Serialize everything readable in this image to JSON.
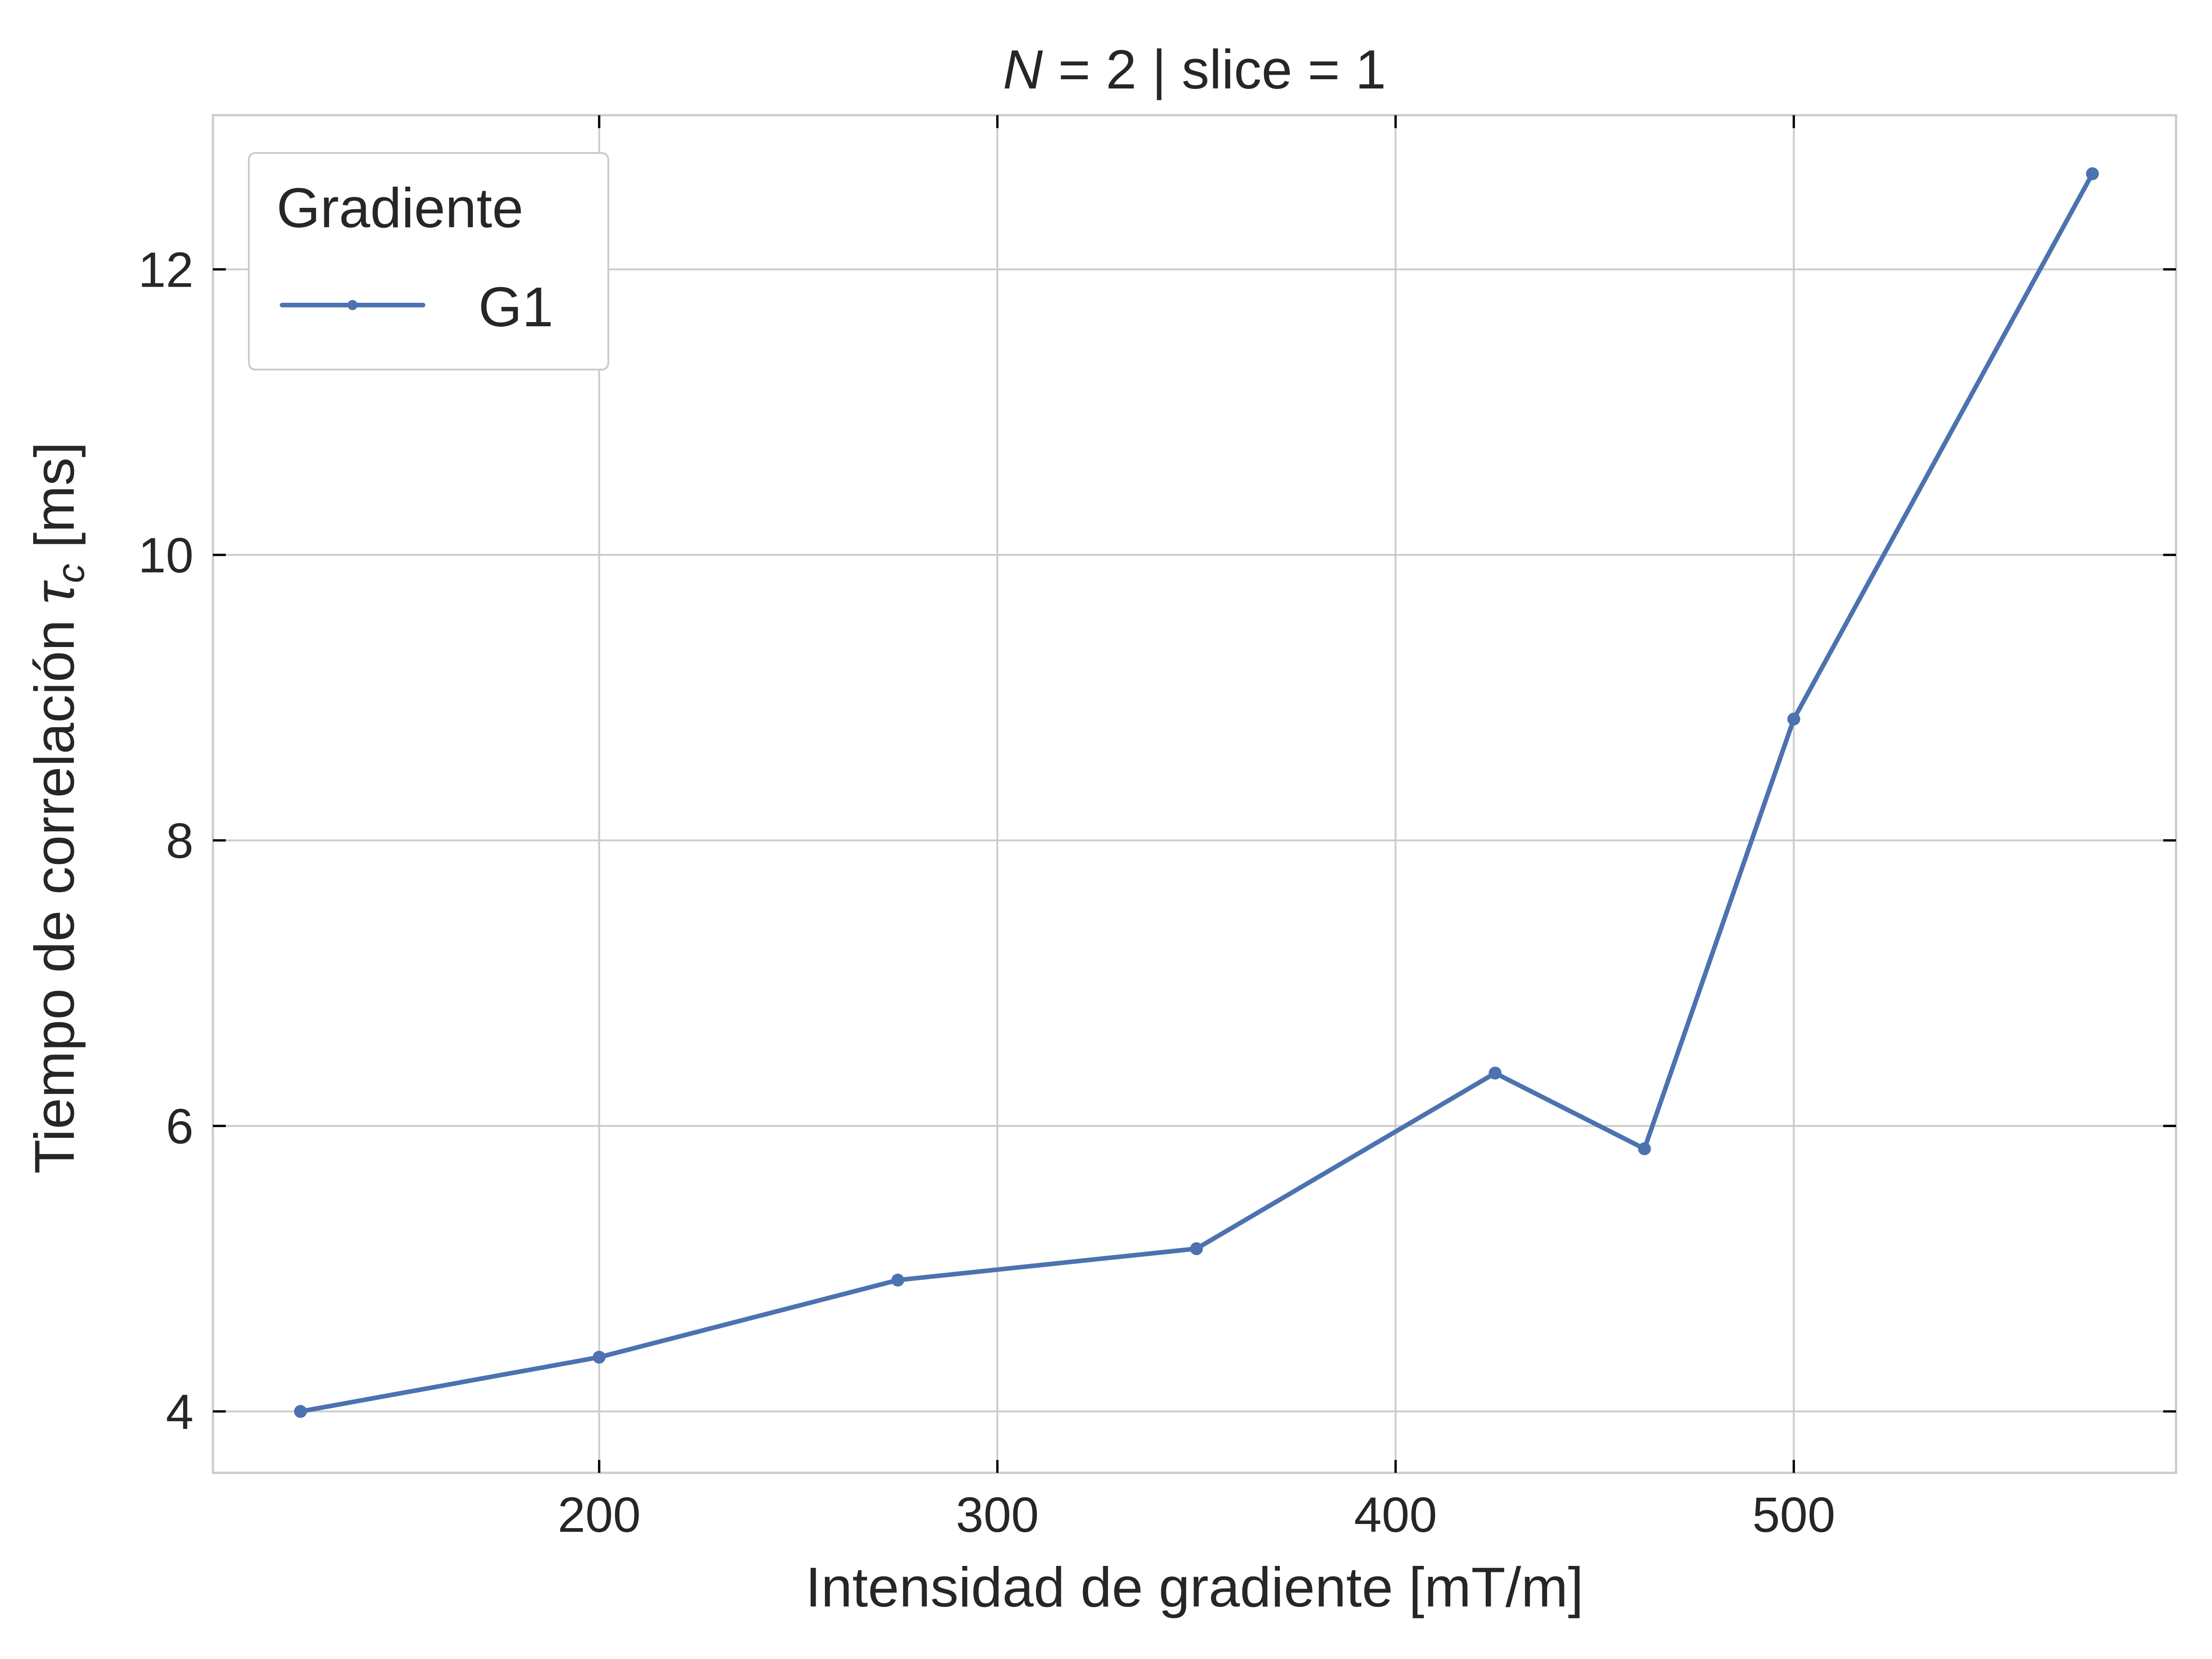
{
  "chart_data": {
    "type": "line",
    "title": "N = 2 | slice = 1",
    "title_parts": {
      "var": "N",
      "rest": " = 2 | slice = 1"
    },
    "xlabel": "Intensidad de gradiente [mT/m]",
    "ylabel": "Tiempo de correlación τc [ms]",
    "ylabel_parts": {
      "text": "Tiempo de correlación ",
      "symbol": "τ",
      "subscript": "c",
      "unit": " [ms]"
    },
    "xlim": [
      103,
      596
    ],
    "ylim": [
      3.57,
      13.08
    ],
    "x_ticks": [
      200,
      300,
      400,
      500
    ],
    "y_ticks": [
      4,
      6,
      8,
      10,
      12
    ],
    "grid": true,
    "legend": {
      "title": "Gradiente",
      "position": "top-left"
    },
    "series": [
      {
        "name": "G1",
        "color": "#4c72b0",
        "marker": "circle",
        "x": [
          125,
          200,
          275,
          350,
          425,
          462.5,
          500,
          575
        ],
        "y": [
          4.0,
          4.38,
          4.92,
          5.14,
          6.37,
          5.84,
          8.85,
          12.67
        ]
      }
    ]
  }
}
